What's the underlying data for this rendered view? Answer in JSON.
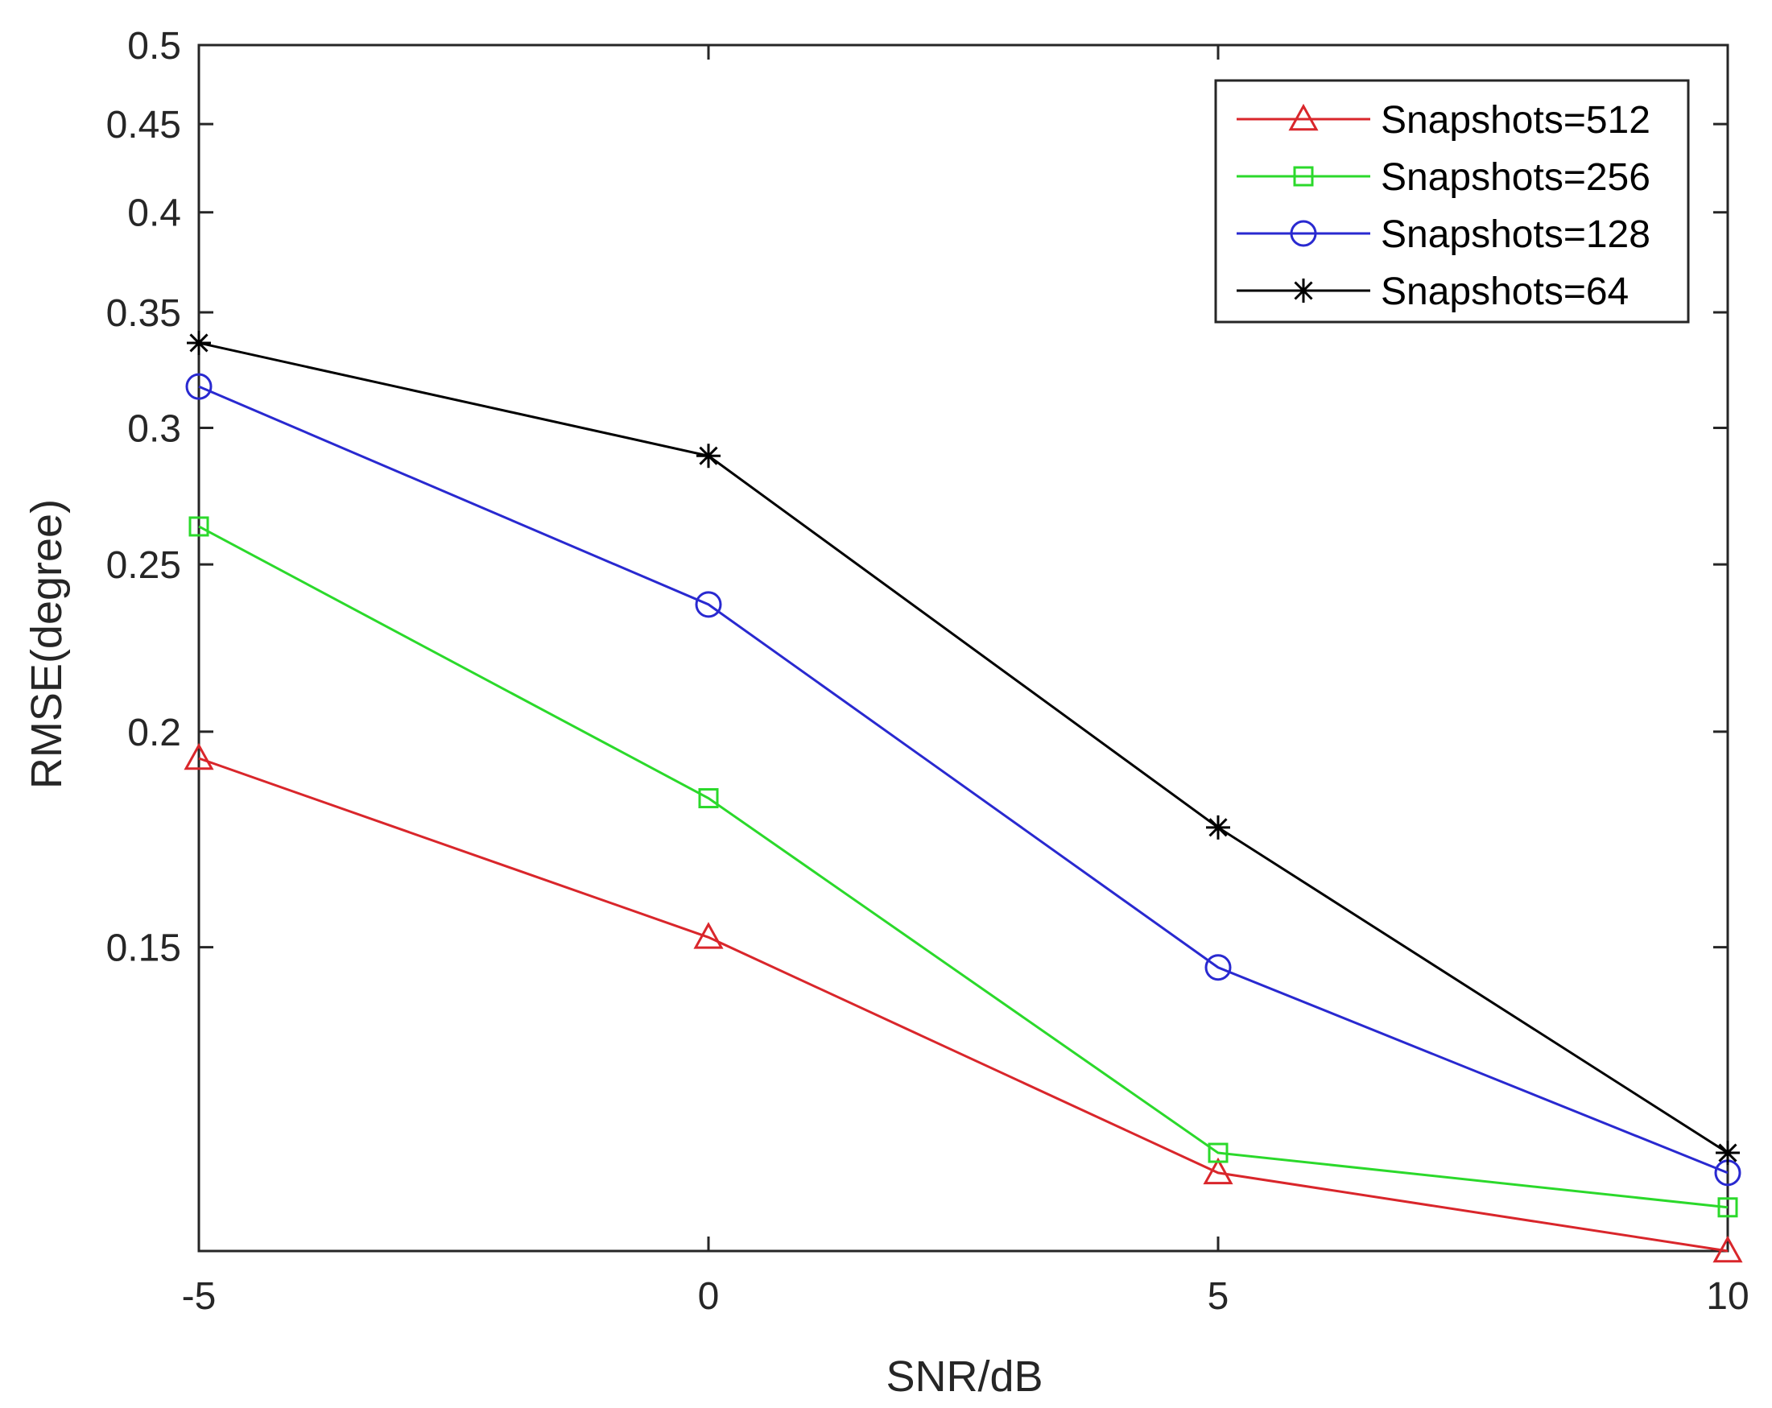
{
  "chart_data": {
    "type": "line",
    "xlabel": "SNR/dB",
    "ylabel": "RMSE(degree)",
    "xlim": [
      -5,
      10
    ],
    "ylim": [
      0.1,
      0.5
    ],
    "yscale": "log",
    "xticks": [
      -5,
      0,
      5,
      10
    ],
    "xtick_labels": [
      "-5",
      "0",
      "5",
      "10"
    ],
    "yticks": [
      0.15,
      0.2,
      0.25,
      0.3,
      0.35,
      0.4,
      0.45,
      0.5
    ],
    "ytick_labels": [
      "0.15",
      "0.2",
      "0.25",
      "0.3",
      "0.35",
      "0.4",
      "0.45",
      "0.5"
    ],
    "legend_position": "top-right",
    "grid": false,
    "x": [
      -5,
      0,
      5,
      10
    ],
    "series": [
      {
        "name": "Snapshots=512",
        "color": "#d9262b",
        "marker": "triangle",
        "values": [
          0.193,
          0.152,
          0.111,
          0.1
        ]
      },
      {
        "name": "Snapshots=256",
        "color": "#2bd92b",
        "marker": "square",
        "values": [
          0.263,
          0.183,
          0.114,
          0.106
        ]
      },
      {
        "name": "Snapshots=128",
        "color": "#2929d0",
        "marker": "circle",
        "values": [
          0.317,
          0.237,
          0.146,
          0.111
        ]
      },
      {
        "name": "Snapshots=64",
        "color": "#000000",
        "marker": "asterisk",
        "values": [
          0.336,
          0.289,
          0.176,
          0.114
        ]
      }
    ]
  }
}
